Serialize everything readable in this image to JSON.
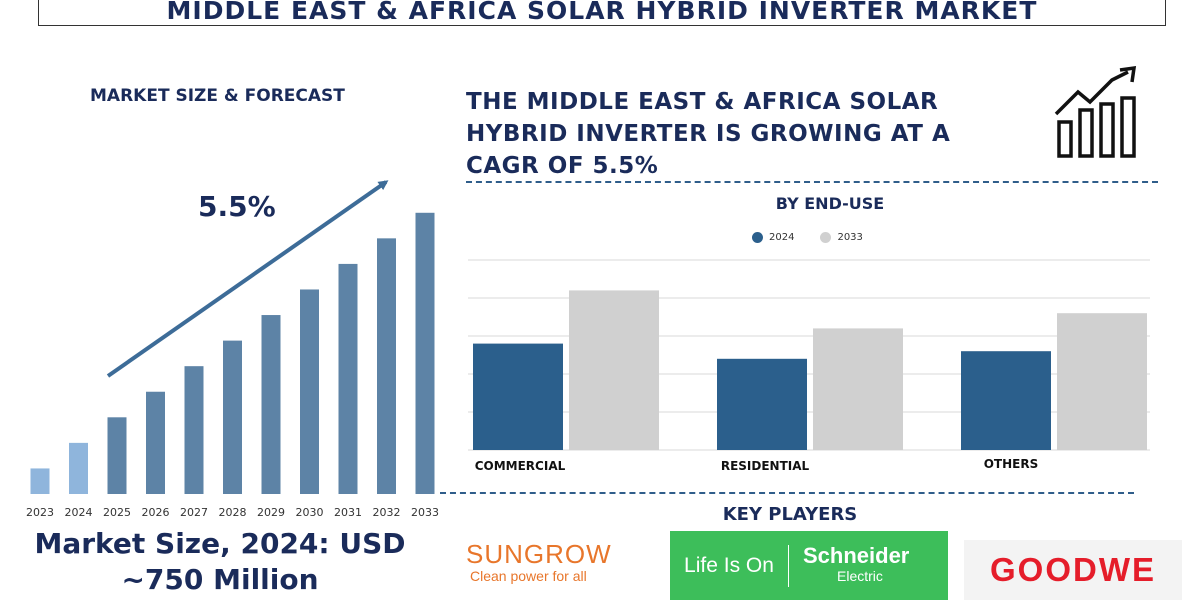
{
  "title": "MIDDLE EAST & AFRICA SOLAR HYBRID INVERTER MARKET",
  "left_panel": {
    "subtitle": "MARKET SIZE & FORECAST",
    "cagr_label": "5.5%",
    "market_size_line1": "Market Size, 2024: USD",
    "market_size_line2": "~750 Million"
  },
  "headline": {
    "line1": "THE MIDDLE EAST & AFRICA SOLAR",
    "line2": "HYBRID INVERTER IS GROWING AT A",
    "line3": "CAGR OF 5.5%"
  },
  "key_players": {
    "title": "KEY PLAYERS",
    "sungrow_name": "SUNGROW",
    "sungrow_tagline": "Clean power for all",
    "schneider_slogan": "Life Is On",
    "schneider_brand": "Schneider",
    "schneider_sub": "Electric",
    "goodwe_name": "GOODWE"
  },
  "colors": {
    "navy": "#1a2b5a",
    "bar_light": "#8fb5dc",
    "bar_mid": "#5d83a6",
    "series_2024": "#2b5f8c",
    "series_2033": "#d0d0d0",
    "sungrow_orange": "#e8762b",
    "schneider_green": "#3dbe5a",
    "goodwe_red": "#e51d2a"
  },
  "chart_data": [
    {
      "type": "bar",
      "title": "MARKET SIZE & FORECAST",
      "categories": [
        "2023",
        "2024",
        "2025",
        "2026",
        "2027",
        "2028",
        "2029",
        "2030",
        "2031",
        "2032",
        "2033"
      ],
      "values": [
        1.0,
        2.0,
        3.0,
        4.0,
        5.0,
        6.0,
        7.0,
        8.0,
        9.0,
        10.0,
        11.0
      ],
      "highlight_categories": [
        "2023",
        "2024"
      ],
      "annotation": "5.5%",
      "ylim": [
        0,
        11.5
      ]
    },
    {
      "type": "bar",
      "title": "BY END-USE",
      "categories": [
        "COMMERCIAL",
        "RESIDENTIAL",
        "OTHERS"
      ],
      "series": [
        {
          "name": "2024",
          "values": [
            2.8,
            2.4,
            2.6
          ]
        },
        {
          "name": "2033",
          "values": [
            4.2,
            3.2,
            3.6
          ]
        }
      ],
      "ylim": [
        0,
        5
      ],
      "grid": true
    }
  ]
}
